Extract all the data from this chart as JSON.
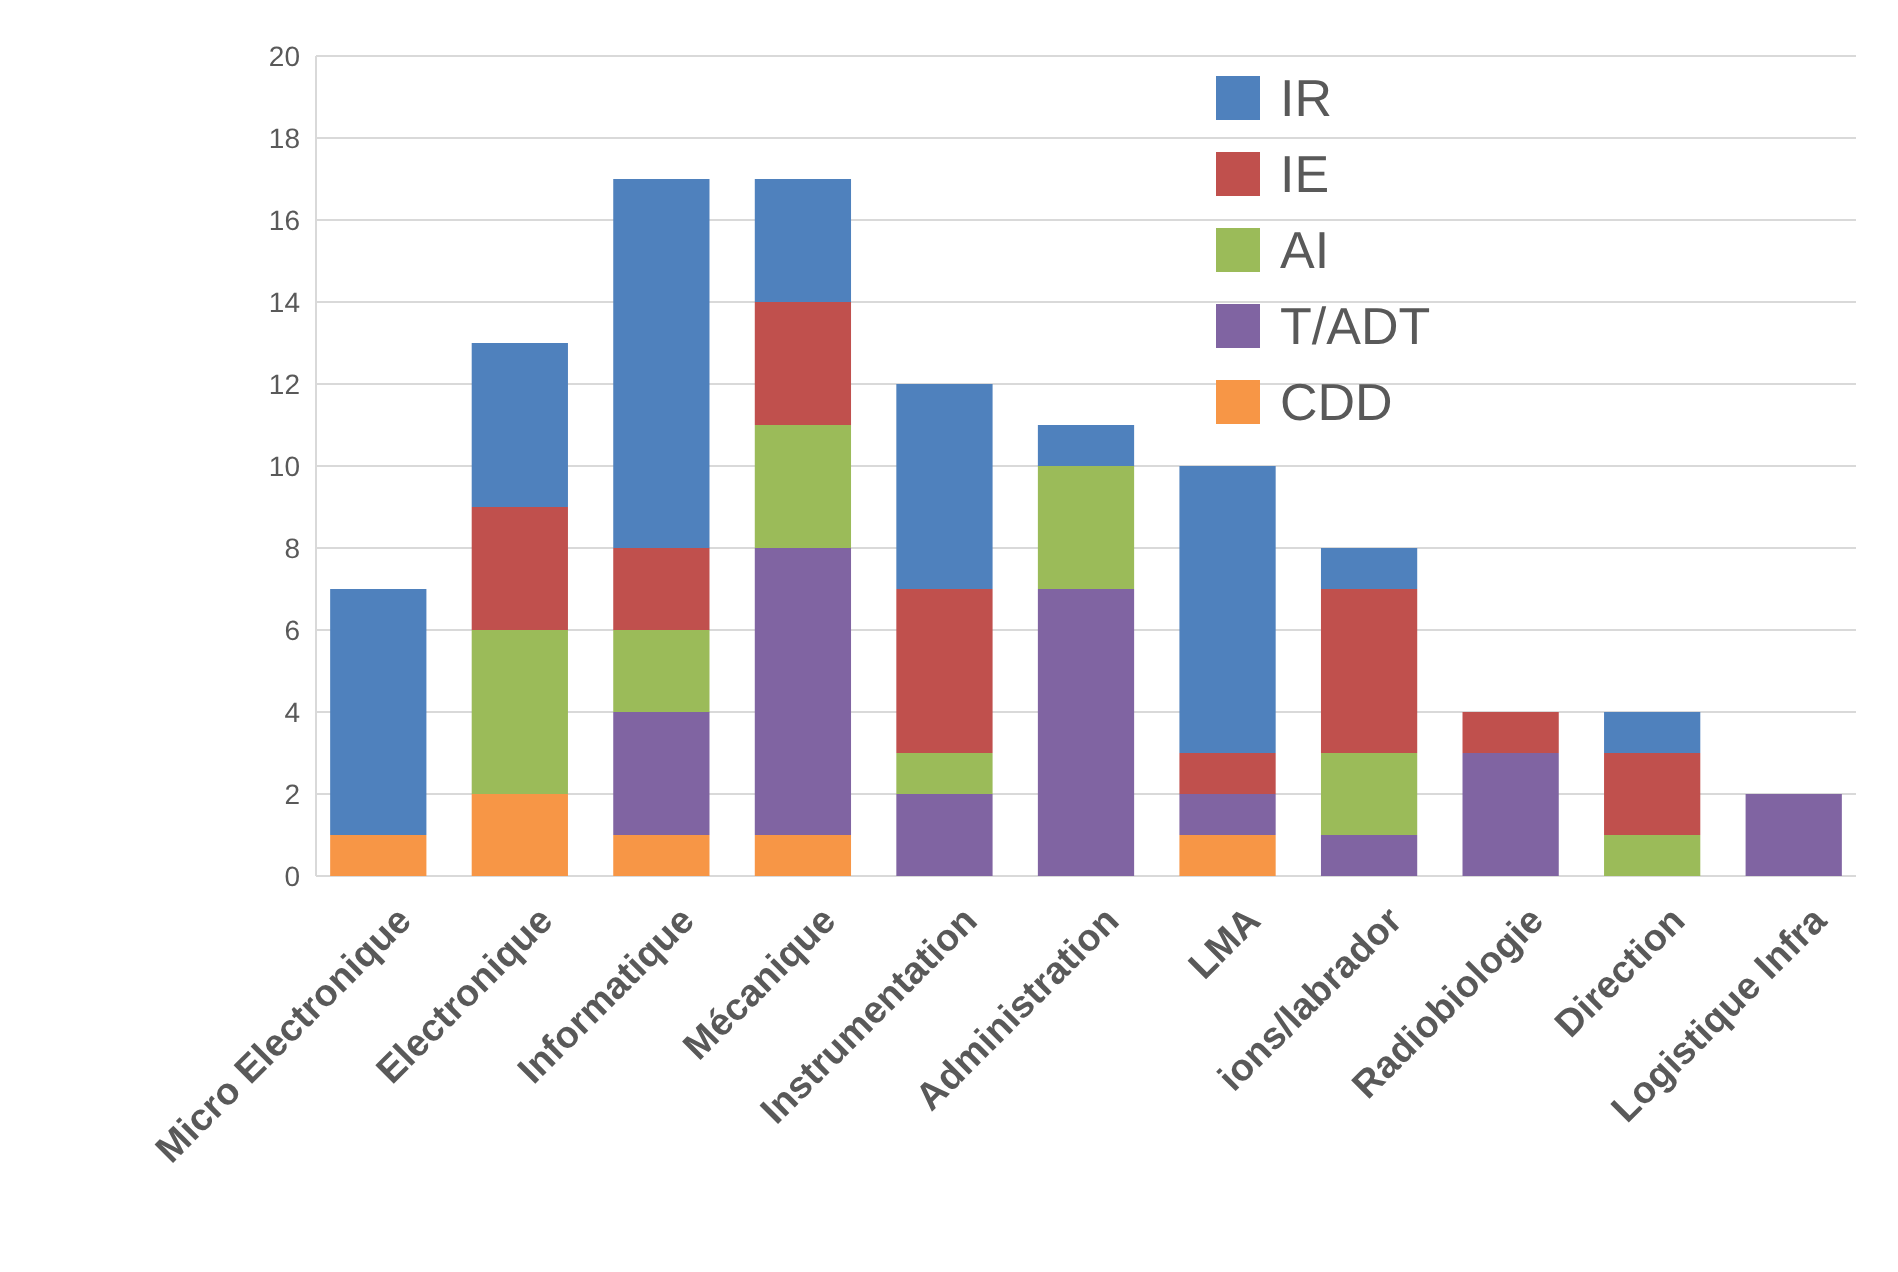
{
  "chart_data": {
    "type": "bar",
    "stacked": true,
    "categories": [
      "Micro Electronique",
      "Electronique",
      "Informatique",
      "Mécanique",
      "Instrumentation",
      "Administration",
      "LMA",
      "ions/labrador",
      "Radiobiologie",
      "Direction",
      "Logistique Infra"
    ],
    "series": [
      {
        "name": "CDD",
        "color": "#f79646",
        "values": [
          1,
          2,
          1,
          1,
          null,
          null,
          1,
          null,
          null,
          null,
          null
        ]
      },
      {
        "name": "T/ADT",
        "color": "#8064a2",
        "values": [
          null,
          null,
          3,
          7,
          2,
          7,
          1,
          1,
          3,
          null,
          2
        ]
      },
      {
        "name": "AI",
        "color": "#9bbb59",
        "values": [
          null,
          4,
          2,
          3,
          1,
          3,
          null,
          2,
          null,
          1,
          null
        ]
      },
      {
        "name": "IE",
        "color": "#c0504d",
        "values": [
          null,
          3,
          2,
          3,
          4,
          null,
          1,
          4,
          1,
          2,
          null
        ]
      },
      {
        "name": "IR",
        "color": "#4f81bd",
        "values": [
          6,
          4,
          9,
          3,
          5,
          1,
          7,
          1,
          null,
          1,
          null
        ]
      }
    ],
    "ylim": [
      0,
      20
    ],
    "yticks": [
      0,
      2,
      4,
      6,
      8,
      10,
      12,
      14,
      16,
      18,
      20
    ],
    "grid": "y",
    "legend": "top right"
  }
}
